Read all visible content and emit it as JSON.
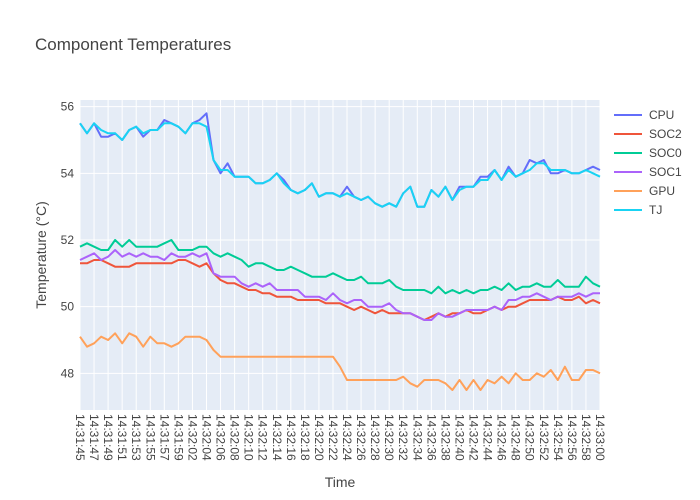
{
  "chart_data": {
    "type": "line",
    "title": "Component Temperatures",
    "xlabel": "Time",
    "ylabel": "Temperature (°C)",
    "ylim": [
      46.9,
      56.2
    ],
    "yticks": [
      48,
      50,
      52,
      54,
      56
    ],
    "legend_position": "top-right",
    "grid": true,
    "x_tick_labels": [
      "14:31:45",
      "14:31:47",
      "14:31:49",
      "14:31:51",
      "14:31:53",
      "14:31:55",
      "14:31:57",
      "14:31:59",
      "14:32:02",
      "14:32:04",
      "14:32:06",
      "14:32:08",
      "14:32:10",
      "14:32:12",
      "14:32:14",
      "14:32:16",
      "14:32:18",
      "14:32:20",
      "14:32:22",
      "14:32:24",
      "14:32:26",
      "14:32:28",
      "14:32:30",
      "14:32:32",
      "14:32:34",
      "14:32:36",
      "14:32:38",
      "14:32:40",
      "14:32:42",
      "14:32:44",
      "14:32:46",
      "14:32:48",
      "14:32:50",
      "14:32:52",
      "14:32:54",
      "14:32:56",
      "14:32:58",
      "14:33:00"
    ],
    "series": [
      {
        "name": "CPU",
        "color": "#636efa",
        "values": [
          55.5,
          55.2,
          55.5,
          55.1,
          55.1,
          55.2,
          55.0,
          55.3,
          55.4,
          55.1,
          55.3,
          55.3,
          55.6,
          55.5,
          55.4,
          55.2,
          55.5,
          55.6,
          55.8,
          54.4,
          54.0,
          54.3,
          53.9,
          53.9,
          53.9,
          53.7,
          53.7,
          53.8,
          54.0,
          53.8,
          53.5,
          53.4,
          53.5,
          53.7,
          53.3,
          53.4,
          53.4,
          53.3,
          53.6,
          53.3,
          53.2,
          53.3,
          53.1,
          53.0,
          53.1,
          53.0,
          53.4,
          53.6,
          53.0,
          53.0,
          53.5,
          53.3,
          53.6,
          53.2,
          53.6,
          53.6,
          53.6,
          53.9,
          53.9,
          54.1,
          53.8,
          54.2,
          53.9,
          54.0,
          54.4,
          54.3,
          54.4,
          54.0,
          54.0,
          54.1,
          54.0,
          54.0,
          54.1,
          54.2,
          54.1
        ]
      },
      {
        "name": "SOC2",
        "color": "#ef553b",
        "values": [
          51.3,
          51.3,
          51.4,
          51.4,
          51.3,
          51.2,
          51.2,
          51.2,
          51.3,
          51.3,
          51.3,
          51.3,
          51.3,
          51.3,
          51.4,
          51.4,
          51.3,
          51.2,
          51.3,
          51.0,
          50.8,
          50.7,
          50.7,
          50.6,
          50.5,
          50.5,
          50.4,
          50.4,
          50.3,
          50.3,
          50.3,
          50.2,
          50.2,
          50.2,
          50.2,
          50.1,
          50.1,
          50.1,
          50.0,
          49.9,
          50.0,
          49.9,
          49.8,
          49.9,
          49.8,
          49.8,
          49.8,
          49.8,
          49.7,
          49.6,
          49.7,
          49.8,
          49.7,
          49.8,
          49.8,
          49.9,
          49.8,
          49.8,
          49.9,
          50.0,
          49.9,
          50.0,
          50.0,
          50.1,
          50.2,
          50.2,
          50.2,
          50.2,
          50.3,
          50.2,
          50.2,
          50.3,
          50.1,
          50.2,
          50.1
        ]
      },
      {
        "name": "SOC0",
        "color": "#00cc96",
        "values": [
          51.8,
          51.9,
          51.8,
          51.7,
          51.7,
          52.0,
          51.8,
          52.0,
          51.8,
          51.8,
          51.8,
          51.8,
          51.9,
          52.0,
          51.7,
          51.7,
          51.7,
          51.8,
          51.8,
          51.6,
          51.5,
          51.6,
          51.5,
          51.4,
          51.2,
          51.3,
          51.3,
          51.2,
          51.1,
          51.1,
          51.2,
          51.1,
          51.0,
          50.9,
          50.9,
          50.9,
          51.0,
          50.9,
          50.8,
          50.8,
          50.9,
          50.7,
          50.7,
          50.7,
          50.8,
          50.6,
          50.5,
          50.5,
          50.5,
          50.5,
          50.4,
          50.6,
          50.4,
          50.5,
          50.4,
          50.5,
          50.4,
          50.5,
          50.5,
          50.6,
          50.5,
          50.7,
          50.5,
          50.6,
          50.6,
          50.7,
          50.6,
          50.6,
          50.8,
          50.6,
          50.6,
          50.6,
          50.9,
          50.7,
          50.6
        ]
      },
      {
        "name": "SOC1",
        "color": "#ab63fa",
        "values": [
          51.4,
          51.5,
          51.6,
          51.4,
          51.5,
          51.7,
          51.5,
          51.6,
          51.5,
          51.6,
          51.5,
          51.5,
          51.4,
          51.6,
          51.5,
          51.5,
          51.6,
          51.5,
          51.6,
          51.0,
          50.9,
          50.9,
          50.9,
          50.7,
          50.6,
          50.7,
          50.6,
          50.7,
          50.5,
          50.5,
          50.5,
          50.5,
          50.3,
          50.3,
          50.3,
          50.2,
          50.4,
          50.2,
          50.1,
          50.2,
          50.2,
          50.0,
          50.0,
          50.0,
          50.1,
          49.9,
          49.8,
          49.8,
          49.7,
          49.6,
          49.6,
          49.8,
          49.7,
          49.7,
          49.8,
          49.9,
          49.9,
          49.9,
          49.9,
          50.0,
          49.9,
          50.2,
          50.2,
          50.3,
          50.3,
          50.4,
          50.3,
          50.2,
          50.3,
          50.3,
          50.3,
          50.4,
          50.3,
          50.4,
          50.4
        ]
      },
      {
        "name": "GPU",
        "color": "#ffa15a",
        "values": [
          49.1,
          48.8,
          48.9,
          49.1,
          49.0,
          49.2,
          48.9,
          49.2,
          49.1,
          48.8,
          49.1,
          48.9,
          48.9,
          48.8,
          48.9,
          49.1,
          49.1,
          49.1,
          49.0,
          48.7,
          48.5,
          48.5,
          48.5,
          48.5,
          48.5,
          48.5,
          48.5,
          48.5,
          48.5,
          48.5,
          48.5,
          48.5,
          48.5,
          48.5,
          48.5,
          48.5,
          48.5,
          48.2,
          47.8,
          47.8,
          47.8,
          47.8,
          47.8,
          47.8,
          47.8,
          47.8,
          47.9,
          47.7,
          47.6,
          47.8,
          47.8,
          47.8,
          47.7,
          47.5,
          47.8,
          47.5,
          47.8,
          47.5,
          47.8,
          47.7,
          47.9,
          47.7,
          48.0,
          47.8,
          47.8,
          48.0,
          47.9,
          48.1,
          47.8,
          48.2,
          47.8,
          47.8,
          48.1,
          48.1,
          48.0
        ]
      },
      {
        "name": "TJ",
        "color": "#19d3f3",
        "values": [
          55.5,
          55.2,
          55.5,
          55.3,
          55.2,
          55.2,
          55.0,
          55.3,
          55.4,
          55.2,
          55.3,
          55.3,
          55.5,
          55.5,
          55.4,
          55.2,
          55.5,
          55.5,
          55.4,
          54.4,
          54.1,
          54.1,
          53.9,
          53.9,
          53.9,
          53.7,
          53.7,
          53.8,
          54.0,
          53.7,
          53.5,
          53.4,
          53.5,
          53.7,
          53.3,
          53.4,
          53.4,
          53.3,
          53.4,
          53.3,
          53.2,
          53.3,
          53.1,
          53.0,
          53.1,
          53.0,
          53.4,
          53.6,
          53.0,
          53.0,
          53.5,
          53.3,
          53.6,
          53.2,
          53.5,
          53.6,
          53.6,
          53.8,
          53.8,
          54.1,
          53.8,
          54.1,
          53.9,
          54.0,
          54.1,
          54.3,
          54.3,
          54.1,
          54.1,
          54.1,
          54.0,
          54.0,
          54.1,
          54.0,
          53.9
        ]
      }
    ]
  }
}
